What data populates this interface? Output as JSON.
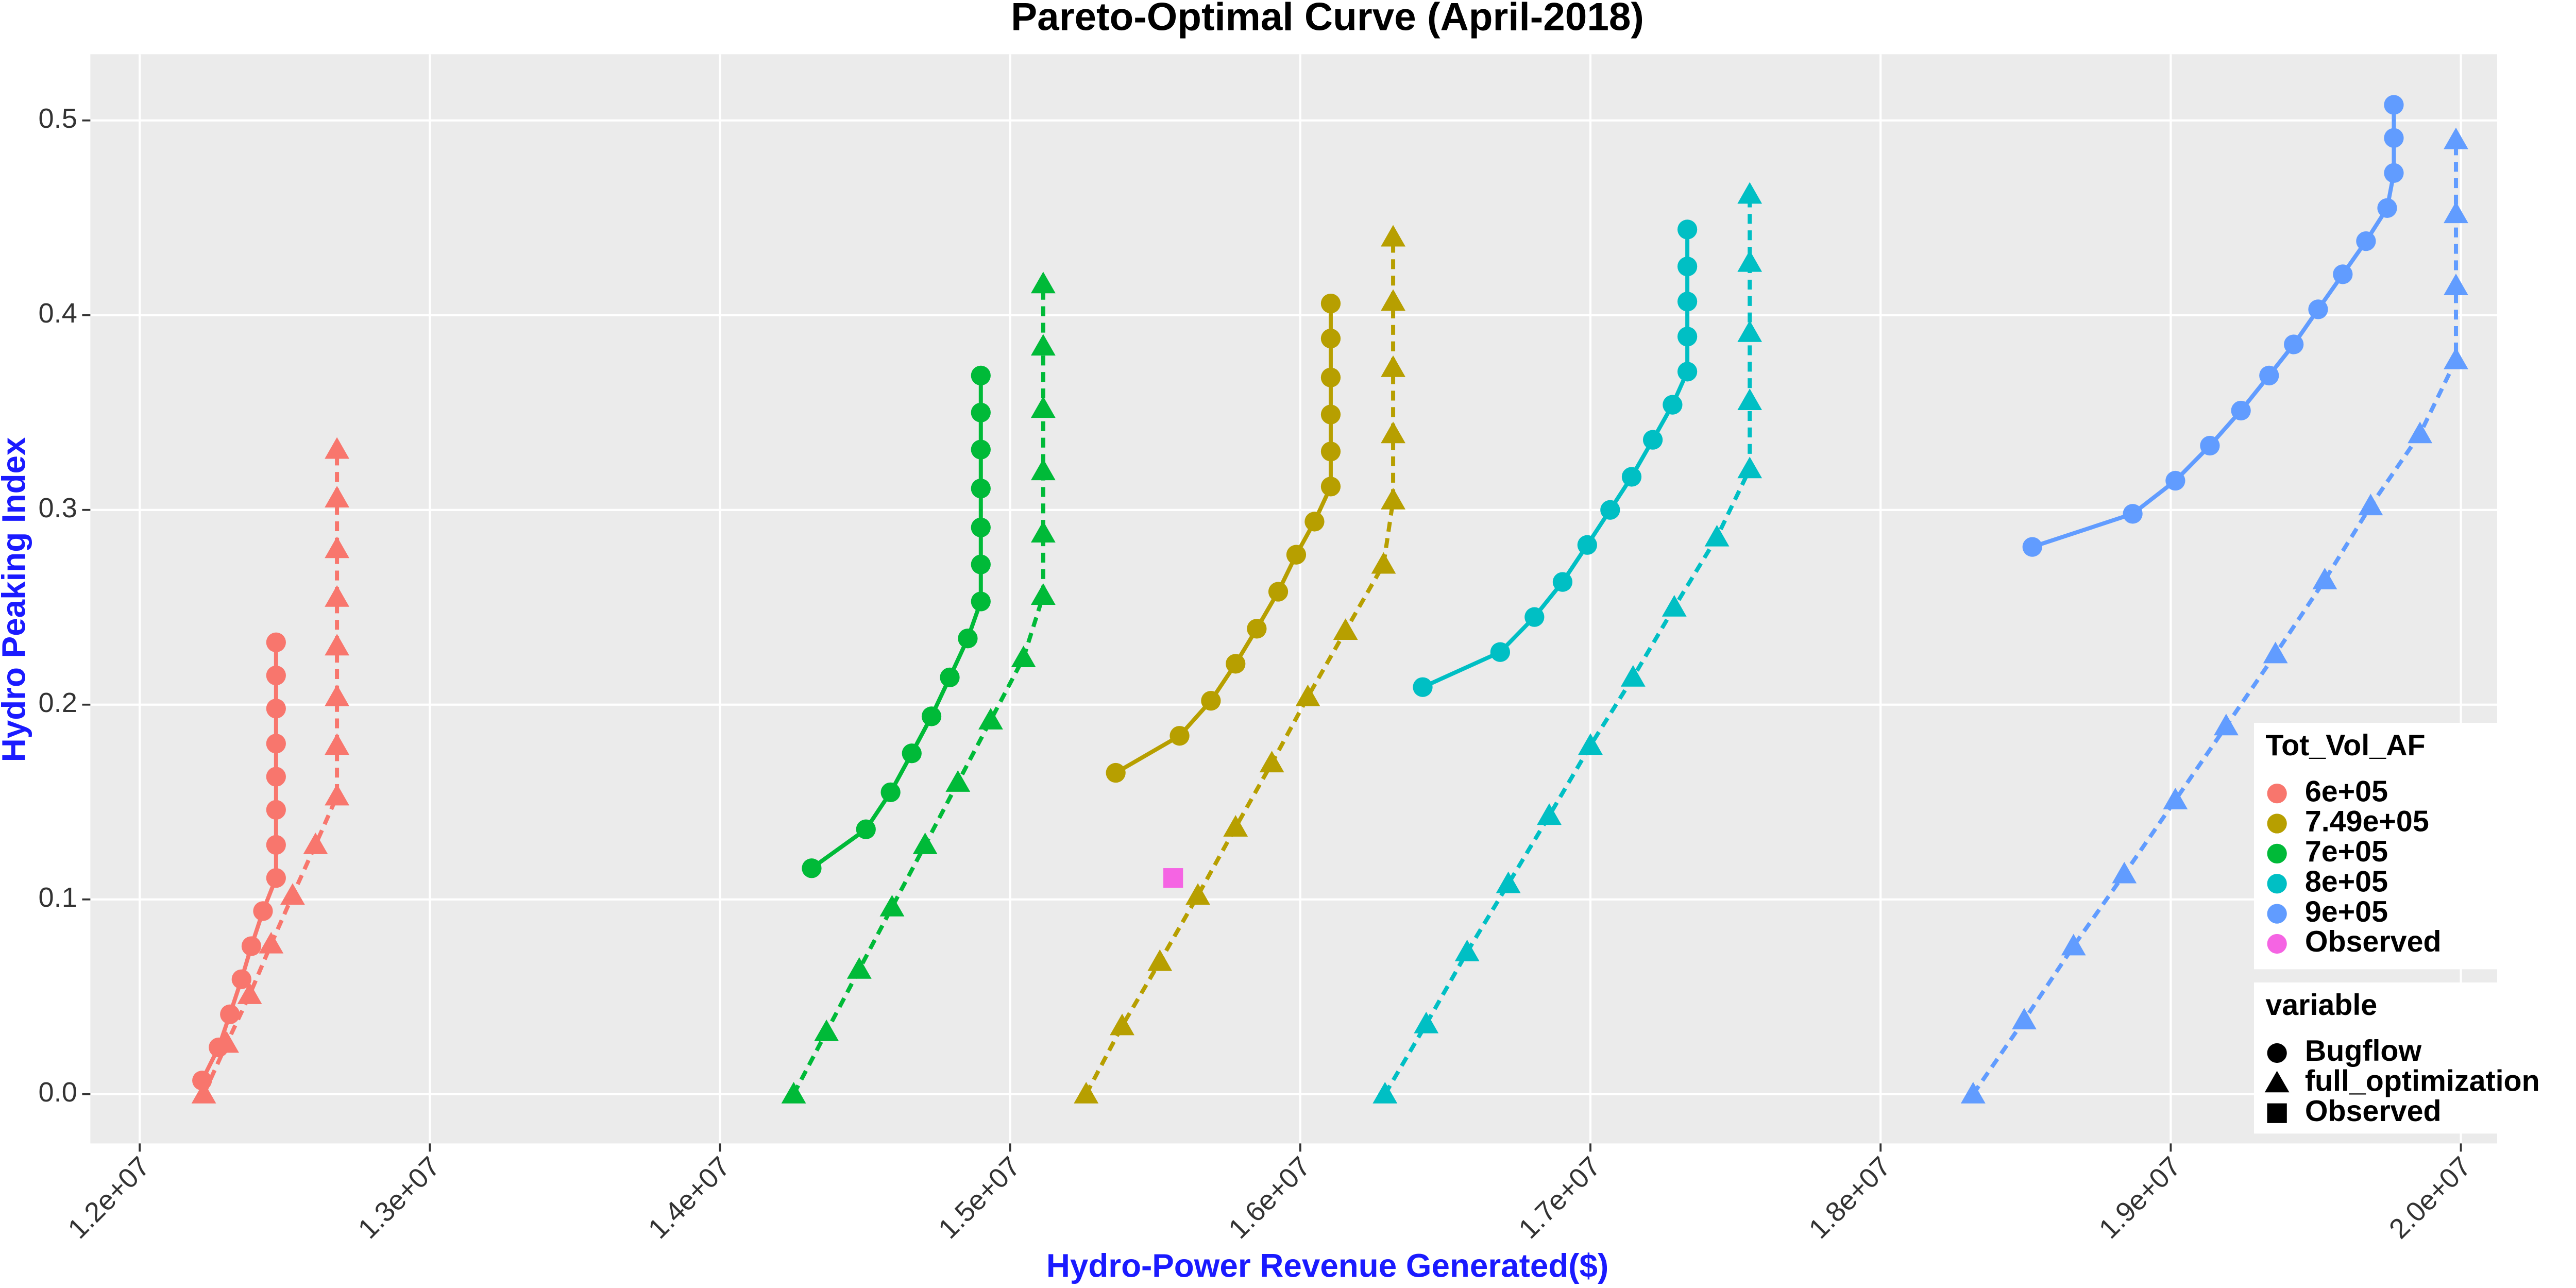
{
  "chart_data": {
    "type": "line",
    "title": "Pareto-Optimal Curve (April-2018)",
    "x_label": "Hydro-Power Revenue Generated($)",
    "y_label": "Hydro Peaking Index",
    "xlim": [
      11830000,
      20125000
    ],
    "ylim": [
      -0.0253,
      0.534
    ],
    "xticks": [
      {
        "value": 12000000,
        "label": "1.2e+07"
      },
      {
        "value": 13000000,
        "label": "1.3e+07"
      },
      {
        "value": 14000000,
        "label": "1.4e+07"
      },
      {
        "value": 15000000,
        "label": "1.5e+07"
      },
      {
        "value": 16000000,
        "label": "1.6e+07"
      },
      {
        "value": 17000000,
        "label": "1.7e+07"
      },
      {
        "value": 18000000,
        "label": "1.8e+07"
      },
      {
        "value": 19000000,
        "label": "1.9e+07"
      },
      {
        "value": 20000000,
        "label": "2.0e+07"
      }
    ],
    "yticks": [
      {
        "value": 0,
        "label": "0.0"
      },
      0.1,
      0.2,
      0.3,
      0.4,
      0.5
    ],
    "grid": true,
    "legend_position": "right",
    "legends": [
      {
        "title": "Tot_Vol_AF",
        "entries": [
          {
            "label": "6e+05",
            "color": "#f8766d"
          },
          {
            "label": "7.49e+05",
            "color": "#b79f00"
          },
          {
            "label": "7e+05",
            "color": "#00ba38"
          },
          {
            "label": "8e+05",
            "color": "#00bfc4"
          },
          {
            "label": "9e+05",
            "color": "#619cff"
          },
          {
            "label": "Observed",
            "color": "#f564e3"
          }
        ]
      },
      {
        "title": "variable",
        "entries": [
          {
            "label": "Bugflow",
            "marker": "circle"
          },
          {
            "label": "full_optimization",
            "marker": "triangle"
          },
          {
            "label": "Observed",
            "marker": "square"
          }
        ]
      }
    ],
    "series": [
      {
        "name": "6e+05 Bugflow",
        "color": "#f8766d",
        "marker": "circle",
        "linetype": "solid",
        "x": [
          12215000,
          12272000,
          12311000,
          12351000,
          12385000,
          12425000,
          12470000,
          12470000,
          12470000,
          12470000,
          12470000,
          12470000,
          12470000,
          12470000
        ],
        "values": [
          0.007,
          0.024,
          0.041,
          0.059,
          0.076,
          0.094,
          0.111,
          0.128,
          0.146,
          0.163,
          0.18,
          0.198,
          0.215,
          0.232
        ]
      },
      {
        "name": "6e+05 full_optimization",
        "color": "#f8766d",
        "marker": "triangle",
        "linetype": "dashed",
        "x": [
          12221000,
          12300000,
          12379000,
          12453000,
          12527000,
          12606000,
          12680000,
          12680000,
          12680000,
          12680000,
          12680000,
          12680000,
          12680000,
          12680000
        ],
        "values": [
          0,
          0.026,
          0.051,
          0.077,
          0.102,
          0.128,
          0.153,
          0.179,
          0.204,
          0.23,
          0.255,
          0.28,
          0.306,
          0.331
        ]
      },
      {
        "name": "7e+05 Bugflow",
        "color": "#00ba38",
        "marker": "circle",
        "linetype": "solid",
        "x": [
          14316000,
          14503000,
          14588000,
          14661000,
          14729000,
          14792000,
          14854000,
          14899000,
          14899000,
          14899000,
          14899000,
          14899000,
          14899000,
          14899000
        ],
        "values": [
          0.116,
          0.136,
          0.155,
          0.175,
          0.194,
          0.214,
          0.234,
          0.253,
          0.272,
          0.291,
          0.311,
          0.331,
          0.35,
          0.369
        ]
      },
      {
        "name": "7e+05 full_optimization",
        "color": "#00ba38",
        "marker": "triangle",
        "linetype": "dashed",
        "x": [
          14254000,
          14367000,
          14480000,
          14593000,
          14707000,
          14820000,
          14933000,
          15046000,
          15114000,
          15114000,
          15114000,
          15114000,
          15114000,
          15114000
        ],
        "values": [
          0,
          0.032,
          0.064,
          0.096,
          0.128,
          0.16,
          0.192,
          0.224,
          0.256,
          0.288,
          0.32,
          0.352,
          0.384,
          0.416
        ]
      },
      {
        "name": "7.49e+05 Bugflow",
        "color": "#b79f00",
        "marker": "circle",
        "linetype": "solid",
        "x": [
          15364000,
          15584000,
          15692000,
          15777000,
          15850000,
          15924000,
          15986000,
          16049000,
          16105000,
          16105000,
          16105000,
          16105000,
          16105000,
          16105000
        ],
        "values": [
          0.165,
          0.184,
          0.202,
          0.221,
          0.239,
          0.258,
          0.277,
          0.294,
          0.312,
          0.33,
          0.349,
          0.368,
          0.388,
          0.406
        ]
      },
      {
        "name": "7.49e+05 full_optimization",
        "color": "#b79f00",
        "marker": "triangle",
        "linetype": "dashed",
        "x": [
          15262000,
          15386000,
          15516000,
          15647000,
          15777000,
          15902000,
          16026000,
          16156000,
          16287000,
          16320000,
          16320000,
          16320000,
          16320000,
          16320000
        ],
        "values": [
          0,
          0.035,
          0.068,
          0.102,
          0.137,
          0.17,
          0.204,
          0.238,
          0.272,
          0.305,
          0.339,
          0.373,
          0.407,
          0.44
        ]
      },
      {
        "name": "8e+05 Bugflow",
        "color": "#00bfc4",
        "marker": "circle",
        "linetype": "solid",
        "x": [
          16422000,
          16689000,
          16807000,
          16904000,
          16989000,
          17068000,
          17142000,
          17215000,
          17283000,
          17334000,
          17334000,
          17334000,
          17334000,
          17334000
        ],
        "values": [
          0.209,
          0.227,
          0.245,
          0.263,
          0.282,
          0.3,
          0.317,
          0.336,
          0.354,
          0.371,
          0.389,
          0.407,
          0.425,
          0.444
        ]
      },
      {
        "name": "8e+05 full_optimization",
        "color": "#00bfc4",
        "marker": "triangle",
        "linetype": "dashed",
        "x": [
          16292000,
          16434000,
          16575000,
          16717000,
          16858000,
          17000000,
          17147000,
          17289000,
          17436000,
          17549000,
          17549000,
          17549000,
          17549000,
          17549000
        ],
        "values": [
          0,
          0.036,
          0.073,
          0.108,
          0.143,
          0.179,
          0.214,
          0.25,
          0.286,
          0.321,
          0.356,
          0.391,
          0.427,
          0.462
        ]
      },
      {
        "name": "9e+05 Bugflow",
        "color": "#619cff",
        "marker": "circle",
        "linetype": "solid",
        "x": [
          18523000,
          18869000,
          19016000,
          19135000,
          19242000,
          19339000,
          19424000,
          19508000,
          19593000,
          19673000,
          19746000,
          19769000,
          19769000,
          19769000
        ],
        "values": [
          0.281,
          0.298,
          0.315,
          0.333,
          0.351,
          0.369,
          0.385,
          0.403,
          0.421,
          0.438,
          0.455,
          0.473,
          0.491,
          0.508
        ]
      },
      {
        "name": "9e+05 full_optimization",
        "color": "#619cff",
        "marker": "triangle",
        "linetype": "dashed",
        "x": [
          18319000,
          18495000,
          18665000,
          18840000,
          19016000,
          19191000,
          19361000,
          19531000,
          19689000,
          19859000,
          19983000,
          19983000,
          19983000,
          19983000
        ],
        "values": [
          0,
          0.038,
          0.076,
          0.113,
          0.151,
          0.189,
          0.226,
          0.264,
          0.302,
          0.339,
          0.377,
          0.415,
          0.452,
          0.49
        ]
      },
      {
        "name": "Observed",
        "color": "#f564e3",
        "marker": "square",
        "linetype": "none",
        "x": [
          15562000
        ],
        "values": [
          0.111
        ]
      }
    ]
  }
}
